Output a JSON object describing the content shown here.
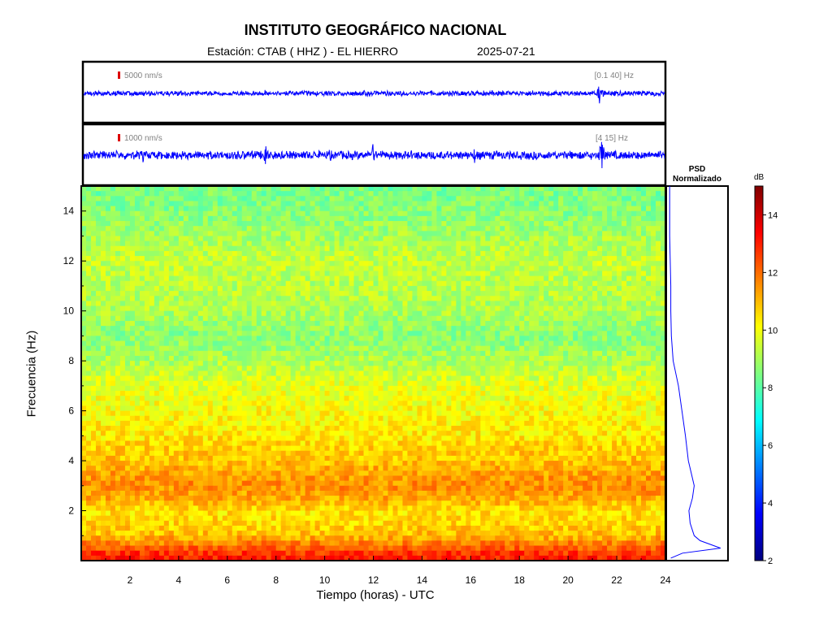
{
  "header": {
    "title": "INSTITUTO GEOGRÁFICO NACIONAL",
    "station": "Estación:  CTAB ( HHZ ) - EL HIERRO",
    "date": "2025-07-21"
  },
  "traces": [
    {
      "scale_label": "5000 nm/s",
      "filter_label": "[0.1 40] Hz"
    },
    {
      "scale_label": "1000 nm/s",
      "filter_label": "[4 15] Hz"
    }
  ],
  "psd": {
    "title_line1": "PSD",
    "title_line2": "Normalizado"
  },
  "colorbar": {
    "unit": "dB",
    "ticks": [
      "2",
      "4",
      "6",
      "8",
      "10",
      "12",
      "14"
    ],
    "range": [
      2,
      15
    ],
    "colormap": "jet"
  },
  "colors": {
    "trace": "#0000ff",
    "scale_bar": "#dd0000",
    "axes": "#000000"
  },
  "chart_data": {
    "type": "heatmap",
    "title": "INSTITUTO GEOGRÁFICO NACIONAL",
    "xlabel": "Tiempo (horas) - UTC",
    "ylabel": "Frecuencia  (Hz)",
    "xlim": [
      0,
      24
    ],
    "ylim": [
      0,
      15
    ],
    "x_ticks": [
      "2",
      "4",
      "6",
      "8",
      "10",
      "12",
      "14",
      "16",
      "18",
      "20",
      "22",
      "24"
    ],
    "y_ticks": [
      "2",
      "4",
      "6",
      "8",
      "10",
      "12",
      "14"
    ],
    "color_units": "dB",
    "color_range": [
      2,
      15
    ],
    "approx_level_by_frequency": {
      "freq_hz": [
        0.2,
        0.5,
        1,
        1.5,
        2,
        2.5,
        3,
        3.5,
        4,
        4.5,
        5,
        6,
        7,
        8,
        9,
        10,
        11,
        12,
        13,
        14,
        15
      ],
      "db": [
        13,
        12.2,
        11,
        10.6,
        10.5,
        11.2,
        11.6,
        11.3,
        10.9,
        10.7,
        10.4,
        10.1,
        9.8,
        9.1,
        8.6,
        9.1,
        9.2,
        9.4,
        9.0,
        8.6,
        8.4
      ]
    },
    "psd_normalized": {
      "freq_hz": [
        0.1,
        0.3,
        0.5,
        0.8,
        1,
        1.5,
        2,
        2.5,
        3,
        3.5,
        4,
        5,
        6,
        7,
        8,
        9,
        10,
        11,
        12,
        13,
        14,
        15
      ],
      "value": [
        0.05,
        0.25,
        0.9,
        0.55,
        0.45,
        0.38,
        0.36,
        0.42,
        0.45,
        0.4,
        0.35,
        0.3,
        0.24,
        0.18,
        0.09,
        0.06,
        0.05,
        0.05,
        0.04,
        0.03,
        0.03,
        0.03
      ]
    }
  }
}
